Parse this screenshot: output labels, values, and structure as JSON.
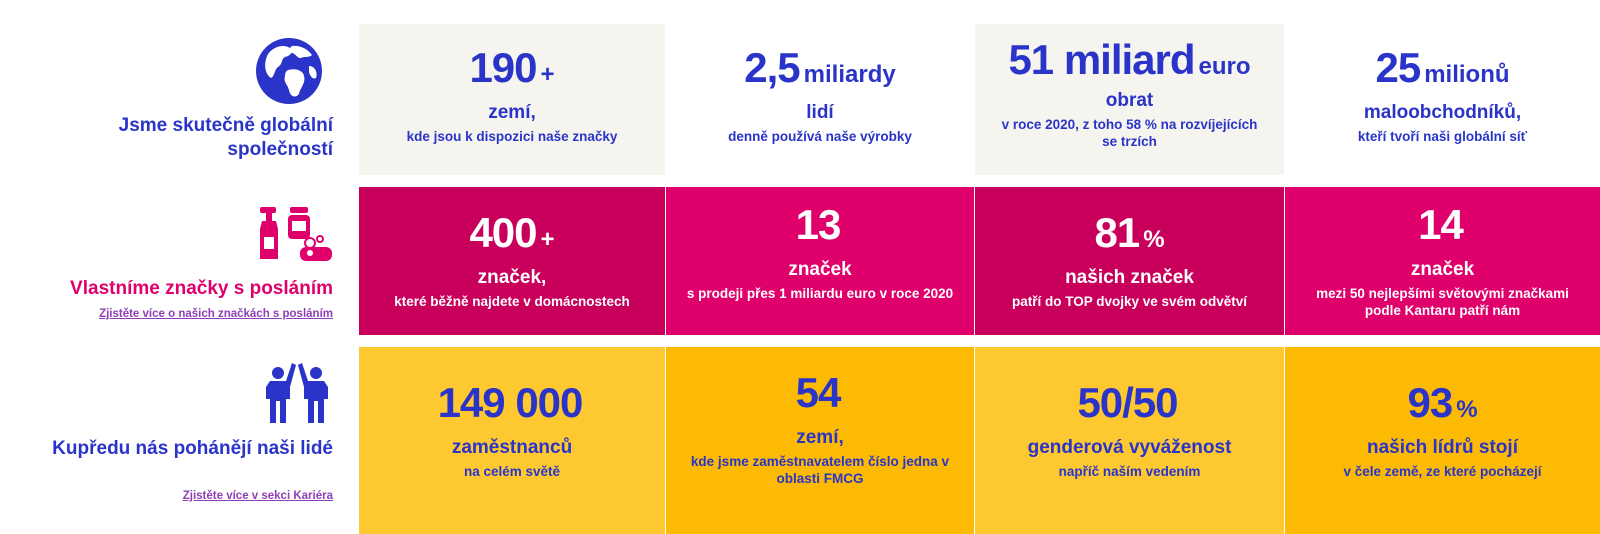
{
  "rows": [
    {
      "title": "Jsme skutečně globální společností",
      "cells": [
        {
          "big": "190",
          "small": "+",
          "sub": "zemí,",
          "desc": "kde jsou k dispozici naše značky"
        },
        {
          "big": "2,5",
          "small": "miliardy",
          "sub": "lidí",
          "desc": "denně používá naše výrobky"
        },
        {
          "big": "51 miliard",
          "small": "euro",
          "sub": "obrat",
          "desc": "v roce 2020, z toho 58 % na rozvíjejících se trzích"
        },
        {
          "big": "25",
          "small": "milionů",
          "sub": "maloobchodníků,",
          "desc": "kteří tvoří naši globální síť"
        }
      ]
    },
    {
      "title": "Vlastníme značky s posláním",
      "link": "Zjistěte více o našich značkách s posláním",
      "cells": [
        {
          "big": "400",
          "small": "+",
          "sub": "značek,",
          "desc": "které běžně najdete v domácnostech"
        },
        {
          "big": "13",
          "small": "",
          "sub": "značek",
          "desc": "s prodeji přes 1 miliardu euro v roce 2020"
        },
        {
          "big": "81",
          "small": "%",
          "sub": "našich značek",
          "desc": "patří do TOP dvojky ve svém odvětví"
        },
        {
          "big": "14",
          "small": "",
          "sub": "značek",
          "desc": "mezi 50 nejlepšími světovými značkami podle Kantaru patří nám"
        }
      ]
    },
    {
      "title": "Kupředu nás pohánějí naši lidé",
      "link": "Zjistěte více v sekci Kariéra",
      "cells": [
        {
          "big": "149 000",
          "small": "",
          "sub": "zaměstnanců",
          "desc": "na celém světě"
        },
        {
          "big": "54",
          "small": "",
          "sub": "zemí,",
          "desc": "kde jsme zaměstnavatelem číslo jedna v oblasti FMCG"
        },
        {
          "big": "50/50",
          "small": "",
          "sub": "genderová vyváženost",
          "desc": "napříč naším vedením"
        },
        {
          "big": "93",
          "small": "%",
          "sub": "našich lídrů stojí",
          "desc": "v čele země, ze které pocházejí"
        }
      ]
    }
  ],
  "colors": {
    "blue": "#2a34c8",
    "pink": "#e0006c",
    "magenta": "#c8005c",
    "link": "#8e3fb6",
    "row1_bg": "#f5f4ef",
    "row3_light": "#fdc830",
    "row3_dark": "#fcba03"
  },
  "icons": [
    "globe-icon",
    "cleaning-products-icon",
    "people-high-five-icon"
  ]
}
